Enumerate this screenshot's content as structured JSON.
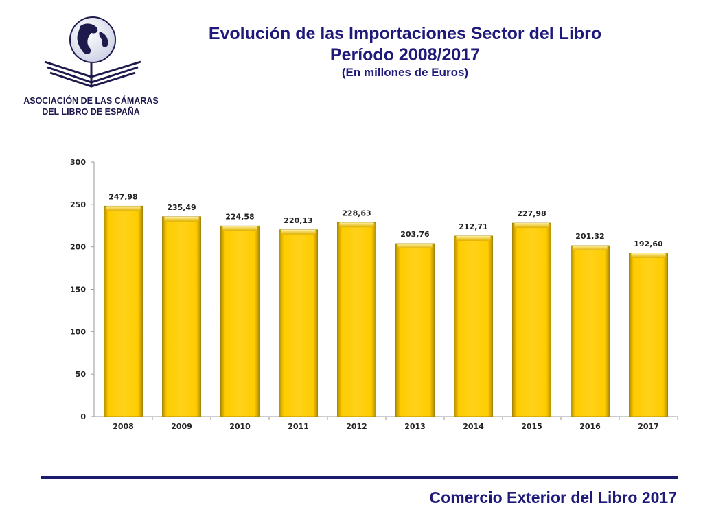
{
  "org": {
    "line1": "ASOCIACIÓN DE LAS CÁMARAS",
    "line2": "DEL LIBRO DE ESPAÑA",
    "logo_icon": "globe-open-book-icon"
  },
  "header": {
    "title_line1": "Evolución de las Importaciones Sector del Libro",
    "title_line2": "Período 2008/2017",
    "subtitle": "(En millones de Euros)"
  },
  "footer": {
    "text": "Comercio Exterior del Libro 2017"
  },
  "colors": {
    "bar": "#ffcc00",
    "bar_dark": "#b38f00",
    "title": "#1f1a7a",
    "rule": "#1b1a6e"
  },
  "chart_data": {
    "type": "bar",
    "categories": [
      "2008",
      "2009",
      "2010",
      "2011",
      "2012",
      "2013",
      "2014",
      "2015",
      "2016",
      "2017"
    ],
    "values": [
      247.98,
      235.49,
      224.58,
      220.13,
      228.63,
      203.76,
      212.71,
      227.98,
      201.32,
      192.6
    ],
    "data_labels": [
      "247,98",
      "235,49",
      "224,58",
      "220,13",
      "228,63",
      "203,76",
      "212,71",
      "227,98",
      "201,32",
      "192,60"
    ],
    "ylim": [
      0,
      300
    ],
    "yticks": [
      0,
      50,
      100,
      150,
      200,
      250,
      300
    ],
    "xlabel": "",
    "ylabel": "",
    "grid": false,
    "legend": "none"
  }
}
